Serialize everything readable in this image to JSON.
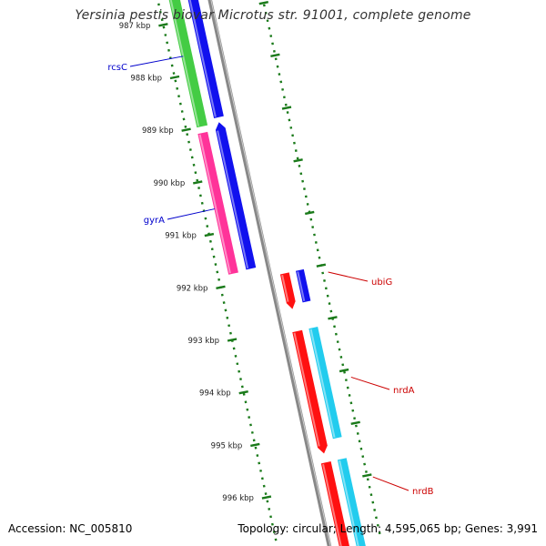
{
  "title": "Yersinia pestis biovar Microtus str. 91001, complete genome",
  "footer": {
    "accession": "Accession: NC_005810",
    "summary": "Topology: circular; Length: 4,595,065 bp; Genes: 3,991"
  },
  "scale": {
    "ticks": [
      {
        "kbp": 987,
        "label": "987 kbp"
      },
      {
        "kbp": 988,
        "label": "988 kbp"
      },
      {
        "kbp": 989,
        "label": "989 kbp"
      },
      {
        "kbp": 990,
        "label": "990 kbp"
      },
      {
        "kbp": 991,
        "label": "991 kbp"
      },
      {
        "kbp": 992,
        "label": "992 kbp"
      },
      {
        "kbp": 993,
        "label": "993 kbp"
      },
      {
        "kbp": 994,
        "label": "994 kbp"
      },
      {
        "kbp": 995,
        "label": "995 kbp"
      },
      {
        "kbp": 996,
        "label": "996 kbp"
      }
    ]
  },
  "colors": {
    "backbone": "#888888",
    "tick": "#1a7a1a",
    "label_blue": "#0000cc",
    "label_red": "#cc0000",
    "green": "#44cc44",
    "blue": "#1111ee",
    "magenta": "#ff3399",
    "red": "#ff1111",
    "cyan": "#22ccee"
  },
  "genes": [
    {
      "name": "rcsC",
      "labeled": true,
      "label_color": "blue"
    },
    {
      "name": "gyrA",
      "labeled": true,
      "label_color": "blue"
    },
    {
      "name": "ubiG",
      "labeled": true,
      "label_color": "red"
    },
    {
      "name": "nrdA",
      "labeled": true,
      "label_color": "red"
    },
    {
      "name": "nrdB",
      "labeled": true,
      "label_color": "red"
    }
  ]
}
